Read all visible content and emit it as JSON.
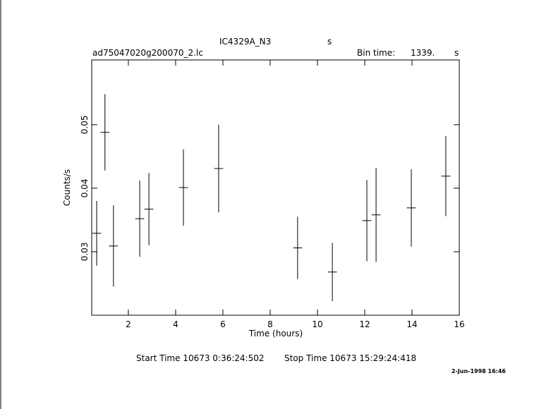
{
  "chart_data": {
    "type": "errorbar",
    "title": "IC4329A_N3",
    "title_unit": "s",
    "file_name": "ad75047020g200070_2.lc",
    "bin_time_label": "Bin time:",
    "bin_time": "1339.",
    "bin_time_unit": "s",
    "xlabel": "Time (hours)",
    "ylabel": "Counts/s",
    "start_time": "Start Time 10673  0:36:24:502",
    "stop_time": "Stop Time 10673 15:29:24:418",
    "date": "2-Jun-1998 16:46",
    "x": [
      0.66,
      1.01,
      1.37,
      2.48,
      2.87,
      4.33,
      5.82,
      9.16,
      10.63,
      12.09,
      12.48,
      13.97,
      15.43
    ],
    "values": [
      0.0329,
      0.0488,
      0.0309,
      0.0352,
      0.0367,
      0.0401,
      0.0431,
      0.0306,
      0.0268,
      0.0349,
      0.0358,
      0.0369,
      0.0419
    ],
    "errors": [
      0.0051,
      0.006,
      0.0064,
      0.006,
      0.0057,
      0.006,
      0.0069,
      0.0049,
      0.0046,
      0.0064,
      0.0074,
      0.0061,
      0.0063
    ],
    "xerr": [
      0.19,
      0.19,
      0.19,
      0.19,
      0.19,
      0.19,
      0.19,
      0.19,
      0.19,
      0.19,
      0.19,
      0.19,
      0.19
    ],
    "color": "#000000",
    "xlim": [
      0.45,
      16
    ],
    "ylim": [
      0.02,
      0.0602
    ],
    "xticks": [
      2,
      4,
      6,
      8,
      10,
      12,
      14,
      16
    ],
    "yticks": [
      0.03,
      0.04,
      0.05
    ]
  }
}
